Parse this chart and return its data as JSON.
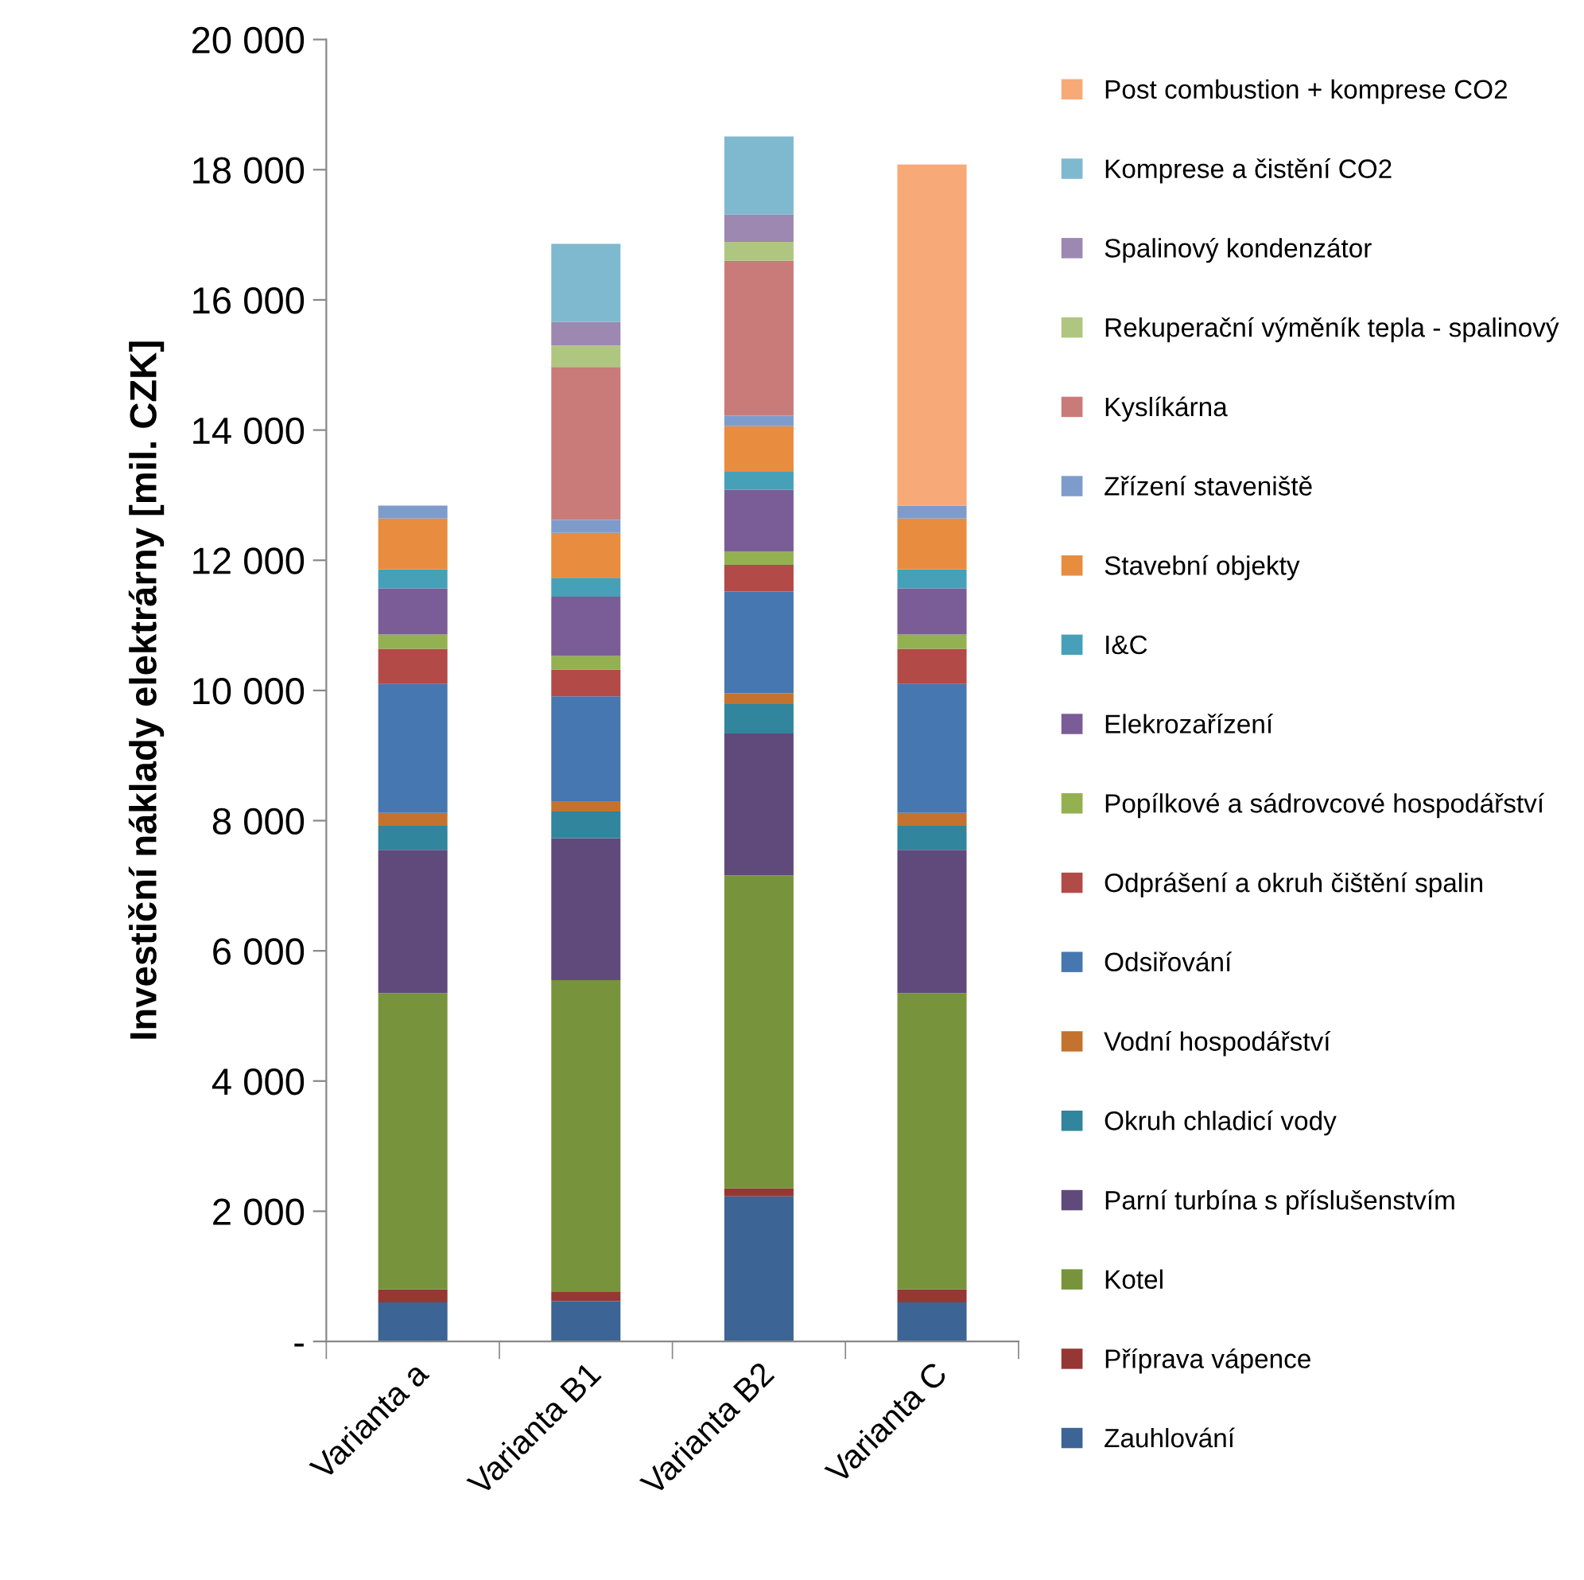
{
  "chart_data": {
    "type": "bar",
    "stacked": true,
    "ylabel": "Investiční náklady elektrárny [mil. CZK]",
    "categories": [
      "Varianta a",
      "Varianta B1",
      "Varianta B2",
      "Varianta C"
    ],
    "ylim": [
      0,
      20000
    ],
    "yticks": [
      {
        "value": 0,
        "label": "-"
      },
      {
        "value": 2000,
        "label": "2 000"
      },
      {
        "value": 4000,
        "label": "4 000"
      },
      {
        "value": 6000,
        "label": "6 000"
      },
      {
        "value": 8000,
        "label": "8 000"
      },
      {
        "value": 10000,
        "label": "10 000"
      },
      {
        "value": 12000,
        "label": "12 000"
      },
      {
        "value": 14000,
        "label": "14 000"
      },
      {
        "value": 16000,
        "label": "16 000"
      },
      {
        "value": 18000,
        "label": "18 000"
      },
      {
        "value": 20000,
        "label": "20 000"
      }
    ],
    "grid": false,
    "legend": "right",
    "series": [
      {
        "name": "Zauhlování",
        "color": "#3c6494",
        "values": [
          600,
          620,
          2230,
          600
        ]
      },
      {
        "name": "Příprava vápence",
        "color": "#953735",
        "values": [
          200,
          140,
          120,
          200
        ]
      },
      {
        "name": "Kotel",
        "color": "#77933c",
        "values": [
          4550,
          4790,
          4810,
          4550
        ]
      },
      {
        "name": "Parní turbína s příslušenstvím",
        "color": "#604a7b",
        "values": [
          2200,
          2180,
          2180,
          2200
        ]
      },
      {
        "name": "Okruh chladicí vody",
        "color": "#31859c",
        "values": [
          370,
          410,
          450,
          370
        ]
      },
      {
        "name": "Vodní hospodářství",
        "color": "#c3732f",
        "values": [
          200,
          160,
          170,
          200
        ]
      },
      {
        "name": "Odsiřování",
        "color": "#4677b0",
        "values": [
          1980,
          1610,
          1560,
          1980
        ]
      },
      {
        "name": "Odprášení a okruh čištění spalin",
        "color": "#b24a47",
        "values": [
          540,
          410,
          410,
          540
        ]
      },
      {
        "name": "Popílkové a sádrovcové hospodářství",
        "color": "#93b150",
        "values": [
          220,
          210,
          200,
          220
        ]
      },
      {
        "name": "Elekrozařízení",
        "color": "#7a5d96",
        "values": [
          710,
          910,
          950,
          710
        ]
      },
      {
        "name": "I&C",
        "color": "#46a0b8",
        "values": [
          290,
          290,
          280,
          290
        ]
      },
      {
        "name": "Stavební objekty",
        "color": "#e88c3f",
        "values": [
          780,
          690,
          700,
          780
        ]
      },
      {
        "name": "Zřízení staveniště",
        "color": "#7e9ccb",
        "values": [
          200,
          200,
          160,
          200
        ]
      },
      {
        "name": "Kyslíkárna",
        "color": "#c97b7a",
        "values": [
          0,
          2350,
          2380,
          0
        ]
      },
      {
        "name": "Rekuperační výměník tepla - spalinový",
        "color": "#afc680",
        "values": [
          0,
          330,
          290,
          0
        ]
      },
      {
        "name": "Spalinový kondenzátor",
        "color": "#9d88b1",
        "values": [
          0,
          360,
          420,
          0
        ]
      },
      {
        "name": "Komprese a čistění CO2",
        "color": "#7fb9cf",
        "values": [
          0,
          1200,
          1200,
          0
        ]
      },
      {
        "name": "Post combustion + komprese CO2",
        "color": "#f8a978",
        "values": [
          0,
          0,
          0,
          5240
        ]
      }
    ]
  }
}
